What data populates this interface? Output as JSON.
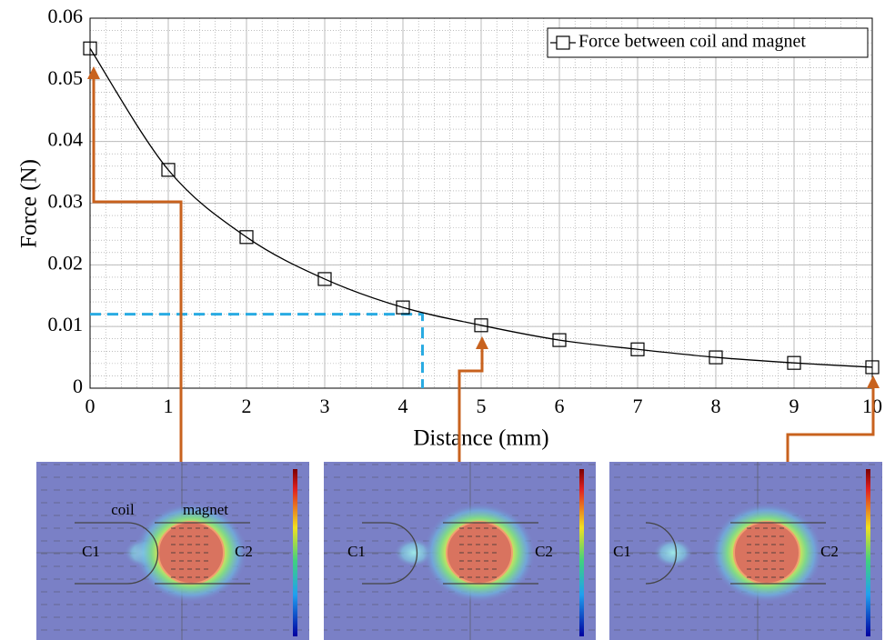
{
  "chart_data": {
    "type": "line",
    "x_label": "Distance (mm)",
    "y_label": "Force (N)",
    "x": [
      0,
      1,
      2,
      3,
      4,
      5,
      6,
      7,
      8,
      9,
      10
    ],
    "series": [
      {
        "name": "Force between coil and magnet",
        "color": "#000000",
        "marker": "square",
        "values": [
          0.0551,
          0.0354,
          0.0245,
          0.0177,
          0.0131,
          0.0102,
          0.0078,
          0.0063,
          0.005,
          0.0041,
          0.0034
        ]
      }
    ],
    "xlim": [
      0,
      10
    ],
    "ylim": [
      0,
      0.06
    ],
    "xticks": [
      0,
      1,
      2,
      3,
      4,
      5,
      6,
      7,
      8,
      9,
      10
    ],
    "yticks": [
      0,
      0.01,
      0.02,
      0.03,
      0.04,
      0.05,
      0.06
    ],
    "grid": true,
    "minor_grid": true,
    "legend": "upper right",
    "reference": {
      "x": 4.25,
      "y": 0.012,
      "color": "#29abe2"
    }
  },
  "insets": [
    {
      "labels": [
        "coil",
        "magnet",
        "C1",
        "C2"
      ]
    },
    {
      "labels": [
        "C1",
        "C2"
      ]
    },
    {
      "labels": [
        "C1",
        "C2"
      ]
    }
  ]
}
